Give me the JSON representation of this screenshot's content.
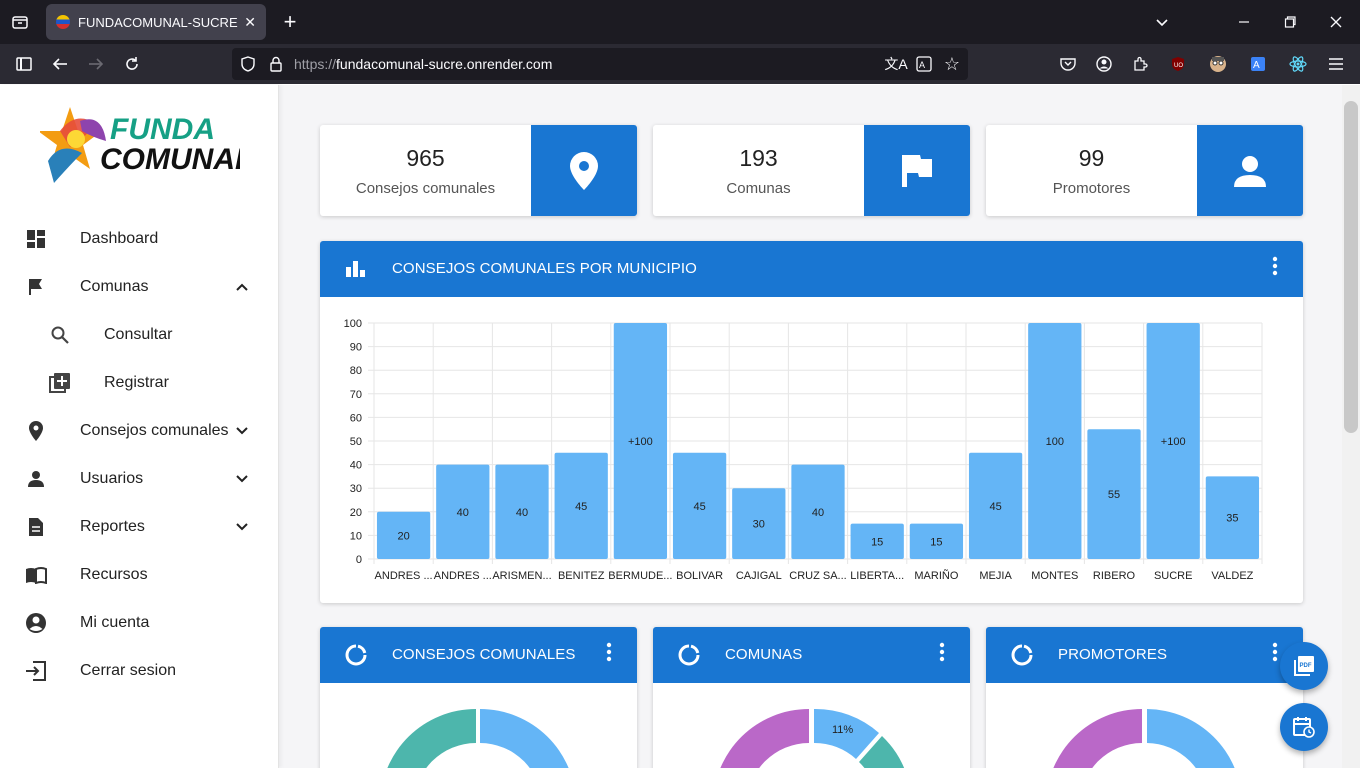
{
  "browser": {
    "tab_title": "FUNDACOMUNAL-SUCRE",
    "url_scheme": "https://",
    "url_host": "fundacomunal-sucre.onrender.com"
  },
  "sidebar": {
    "logo_text": "FUNDA COMUNAL",
    "items": [
      {
        "label": "Dashboard",
        "icon": "dashboard-icon"
      },
      {
        "label": "Comunas",
        "icon": "flag-icon",
        "expanded": true
      },
      {
        "label": "Consultar",
        "icon": "search-icon"
      },
      {
        "label": "Registrar",
        "icon": "add-box-icon"
      },
      {
        "label": "Consejos comunales",
        "icon": "location-pin-icon"
      },
      {
        "label": "Usuarios",
        "icon": "person-icon"
      },
      {
        "label": "Reportes",
        "icon": "document-icon"
      },
      {
        "label": "Recursos",
        "icon": "book-icon"
      },
      {
        "label": "Mi cuenta",
        "icon": "account-circle-icon"
      },
      {
        "label": "Cerrar sesion",
        "icon": "logout-icon"
      }
    ]
  },
  "stats": [
    {
      "value": "965",
      "label": "Consejos comunales",
      "icon": "location-pin-icon"
    },
    {
      "value": "193",
      "label": "Comunas",
      "icon": "flag-icon"
    },
    {
      "value": "99",
      "label": "Promotores",
      "icon": "person-icon"
    }
  ],
  "bar_card": {
    "title": "CONSEJOS COMUNALES POR MUNICIPIO"
  },
  "donut_cards": [
    {
      "title": "CONSEJOS COMUNALES"
    },
    {
      "title": "COMUNAS",
      "visible_label": "11%"
    },
    {
      "title": "PROMOTORES"
    }
  ],
  "colors": {
    "primary": "#1976d2",
    "bar": "#64b5f6",
    "teal": "#4db6ac",
    "purple": "#ba68c8"
  },
  "chart_data": [
    {
      "type": "bar",
      "title": "CONSEJOS COMUNALES POR MUNICIPIO",
      "categories": [
        "ANDRES ...",
        "ANDRES ...",
        "ARISMEN...",
        "BENITEZ",
        "BERMUDE...",
        "BOLIVAR",
        "CAJIGAL",
        "CRUZ SA...",
        "LIBERTA...",
        "MARIÑO",
        "MEJIA",
        "MONTES",
        "RIBERO",
        "SUCRE",
        "VALDEZ"
      ],
      "values": [
        20,
        40,
        40,
        45,
        100,
        45,
        30,
        40,
        15,
        15,
        45,
        100,
        55,
        100,
        35
      ],
      "data_labels": [
        "20",
        "40",
        "40",
        "45",
        "+100",
        "45",
        "30",
        "40",
        "15",
        "15",
        "45",
        "100",
        "55",
        "+100",
        "35"
      ],
      "ylim": [
        0,
        100
      ],
      "yticks": [
        0,
        10,
        20,
        30,
        40,
        50,
        60,
        70,
        80,
        90,
        100
      ],
      "grid": true
    }
  ]
}
